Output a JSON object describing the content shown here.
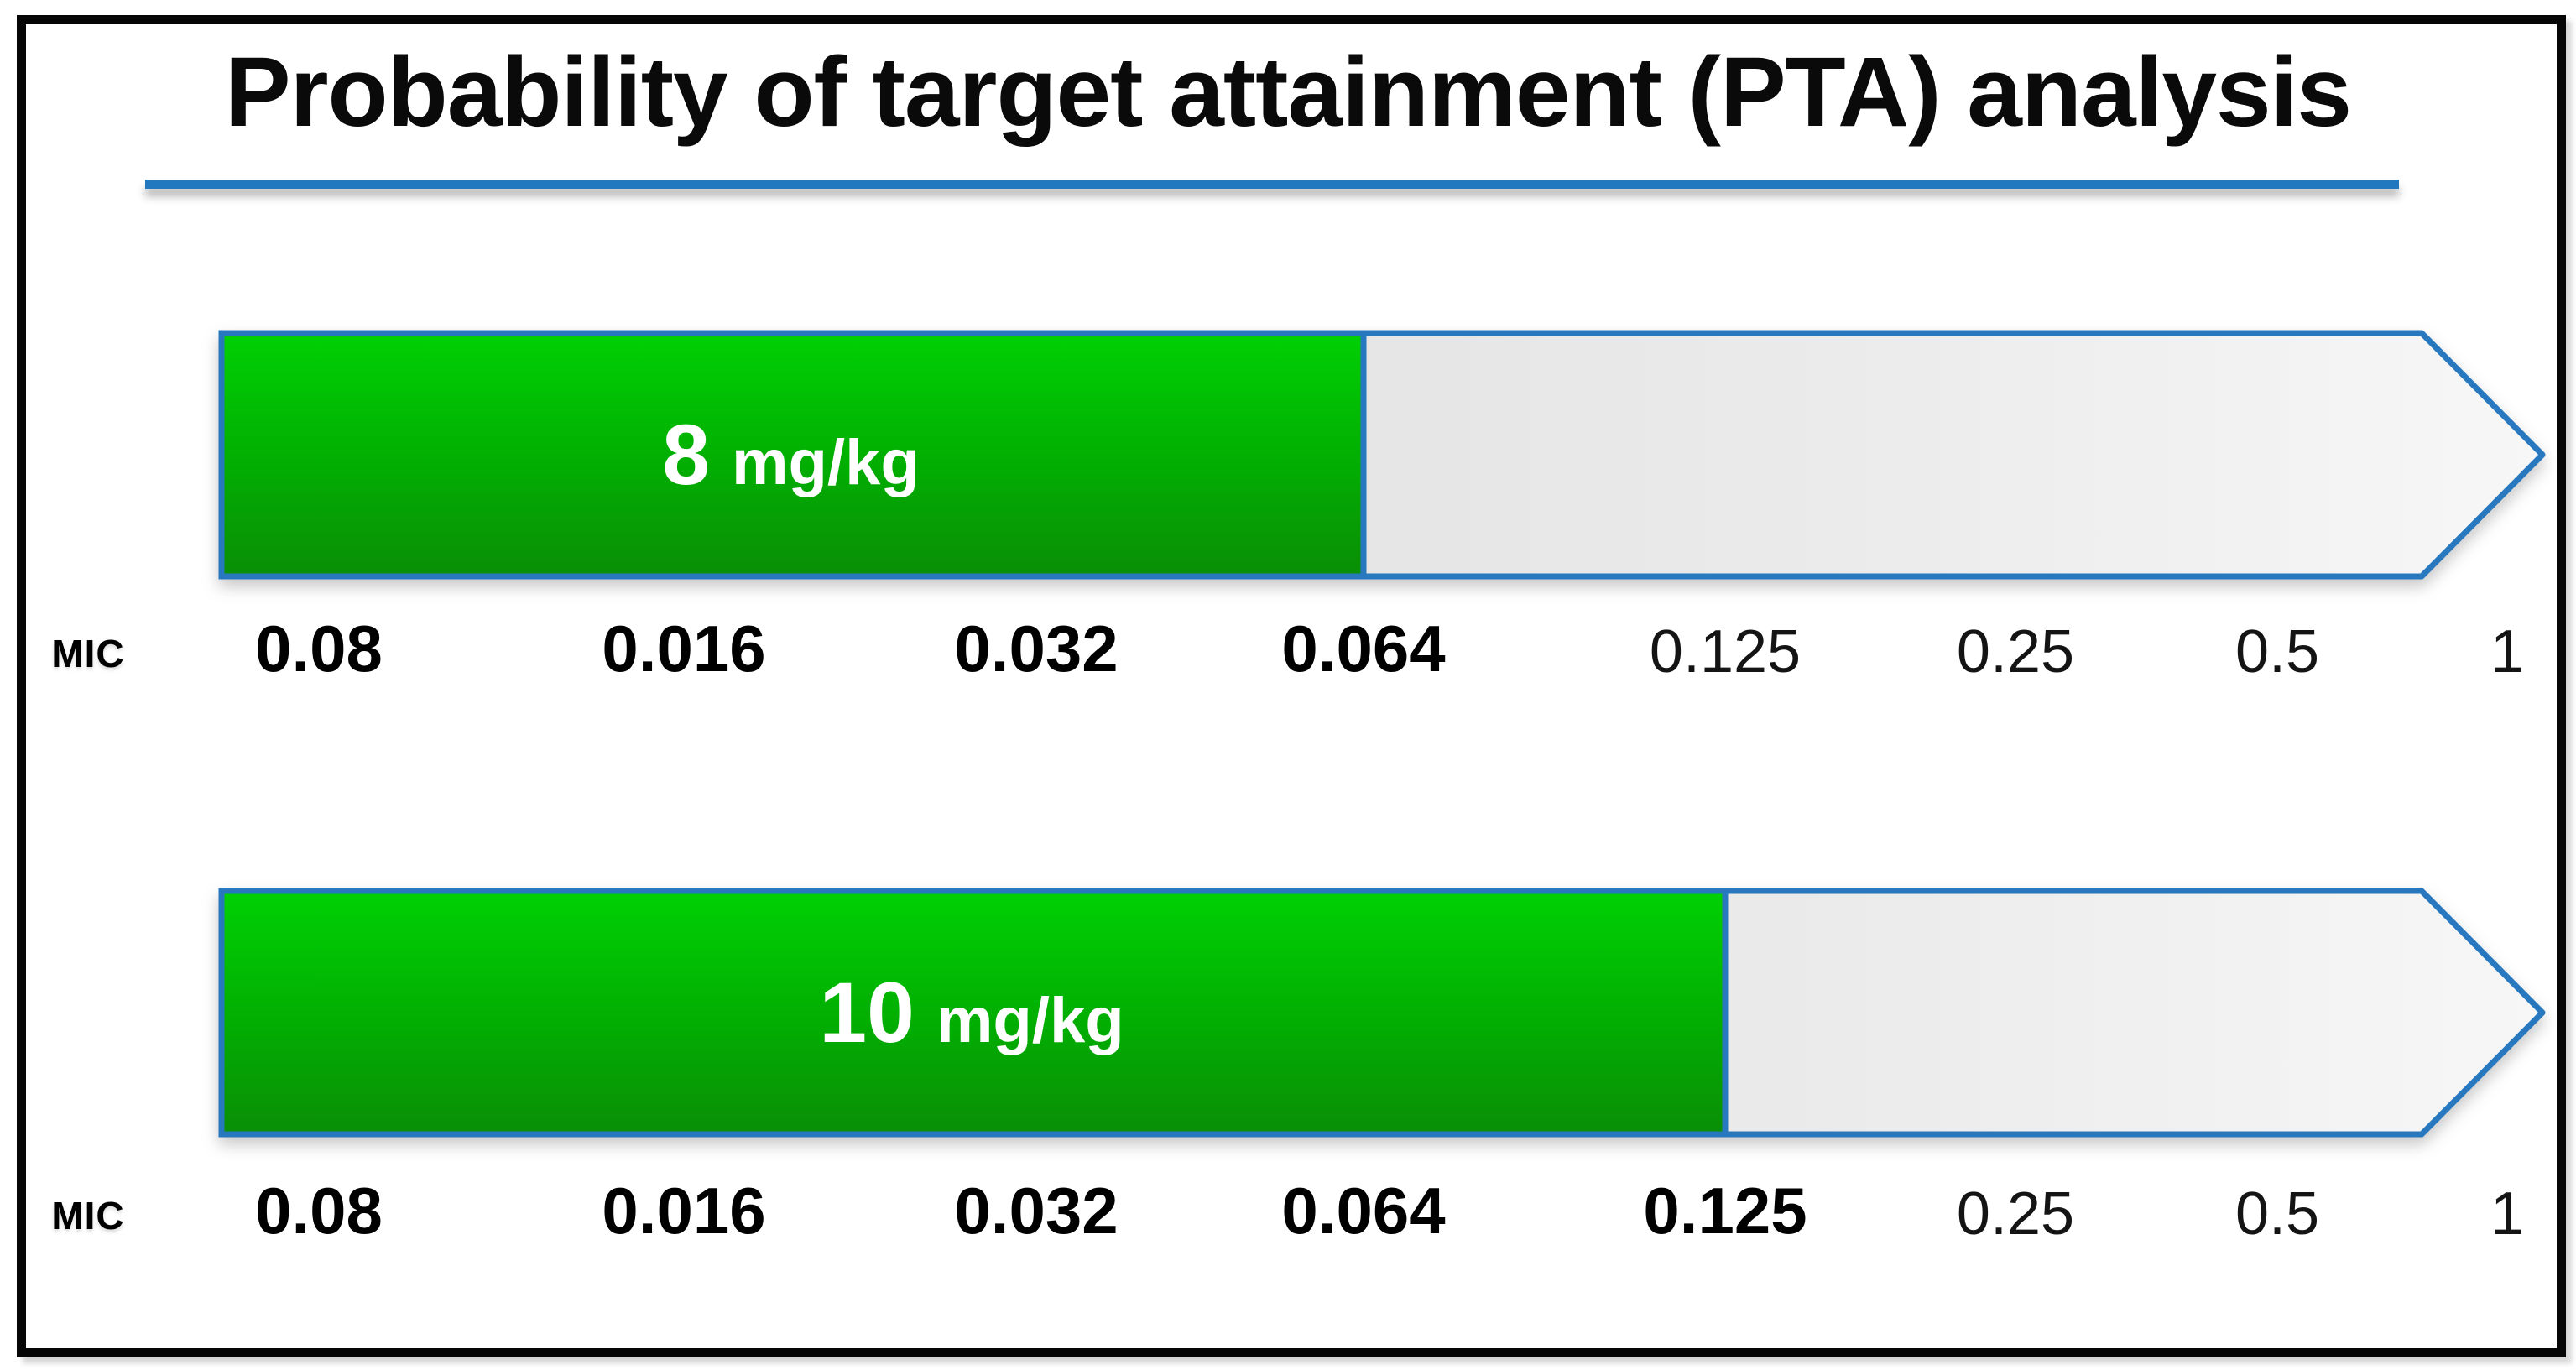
{
  "title": "Probability of target attainment (PTA) analysis",
  "axis_label": "MIC",
  "colors": {
    "underline_blue": "#2278BE",
    "bar_border_blue": "#2878BF",
    "green_top": "#00D004",
    "green_mid": "#02AD02",
    "green_bottom": "#0A8E06",
    "gray_start": "#D8D8D8",
    "gray_mid": "#EBEBEB",
    "gray_end": "#F7F7F7",
    "frame_black": "#060606"
  },
  "chart_data": {
    "type": "bar",
    "title": "Probability of target attainment (PTA) analysis",
    "xlabel": "MIC",
    "categories": [
      "0.08",
      "0.016",
      "0.032",
      "0.064",
      "0.125",
      "0.25",
      "0.5",
      "1"
    ],
    "series": [
      {
        "name": "8 mg/kg",
        "attained_up_to_mic": "0.064",
        "attained_per_mic": [
          true,
          true,
          true,
          true,
          false,
          false,
          false,
          false
        ]
      },
      {
        "name": "10 mg/kg",
        "attained_up_to_mic": "0.125",
        "attained_per_mic": [
          true,
          true,
          true,
          true,
          true,
          false,
          false,
          false
        ]
      }
    ],
    "legend_position": "none",
    "grid": false
  },
  "rows": [
    {
      "dose_value": "8",
      "dose_unit": "mg/kg",
      "attained_up_to": "0.064",
      "mic_label": "MIC",
      "ticks": [
        {
          "label": "0.08",
          "attained": true
        },
        {
          "label": "0.016",
          "attained": true
        },
        {
          "label": "0.032",
          "attained": true
        },
        {
          "label": "0.064",
          "attained": true
        },
        {
          "label": "0.125",
          "attained": false
        },
        {
          "label": "0.25",
          "attained": false
        },
        {
          "label": "0.5",
          "attained": false
        },
        {
          "label": "1",
          "attained": false
        }
      ]
    },
    {
      "dose_value": "10",
      "dose_unit": "mg/kg",
      "attained_up_to": "0.125",
      "mic_label": "MIC",
      "ticks": [
        {
          "label": "0.08",
          "attained": true
        },
        {
          "label": "0.016",
          "attained": true
        },
        {
          "label": "0.032",
          "attained": true
        },
        {
          "label": "0.064",
          "attained": true
        },
        {
          "label": "0.125",
          "attained": true
        },
        {
          "label": "0.25",
          "attained": false
        },
        {
          "label": "0.5",
          "attained": false
        },
        {
          "label": "1",
          "attained": false
        }
      ]
    }
  ]
}
